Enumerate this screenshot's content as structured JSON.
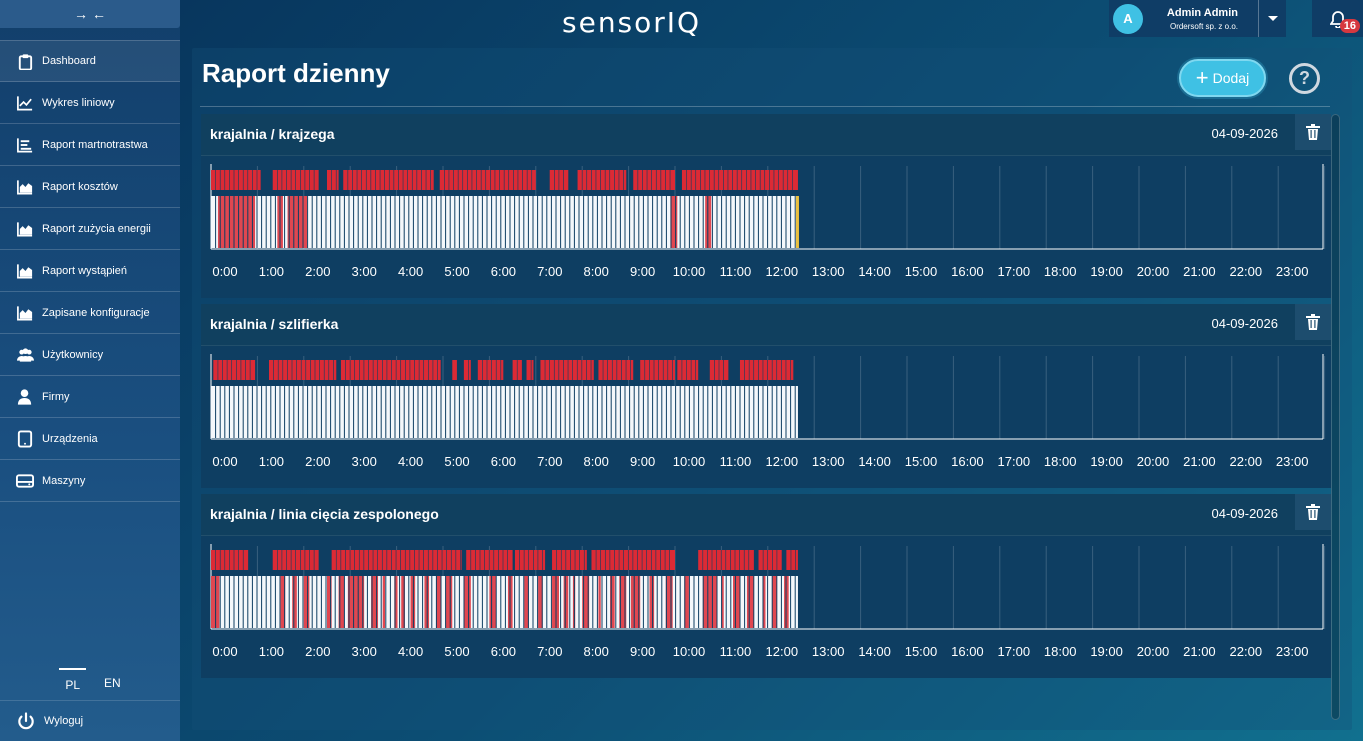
{
  "sidebar": {
    "items": [
      {
        "label": "Dashboard",
        "icon": "clipboard-icon"
      },
      {
        "label": "Wykres liniowy",
        "icon": "line-chart-icon"
      },
      {
        "label": "Raport martnotrastwa",
        "icon": "bar-list-icon"
      },
      {
        "label": "Raport kosztów",
        "icon": "area-chart-icon"
      },
      {
        "label": "Raport zużycia energii",
        "icon": "area-chart-icon"
      },
      {
        "label": "Raport wystąpień",
        "icon": "area-chart-icon"
      },
      {
        "label": "Zapisane konfiguracje",
        "icon": "area-chart-icon"
      },
      {
        "label": "Użytkownicy",
        "icon": "users-icon"
      },
      {
        "label": "Firmy",
        "icon": "user-icon"
      },
      {
        "label": "Urządzenia",
        "icon": "tablet-icon"
      },
      {
        "label": "Maszyny",
        "icon": "hdd-icon"
      }
    ],
    "languages": [
      "PL",
      "EN"
    ],
    "active_language": "PL",
    "logout": "Wyloguj"
  },
  "header": {
    "logo": "sensorIQ",
    "user_initial": "A",
    "user_name": "Admin Admin",
    "user_company": "Ordersoft sp. z o.o.",
    "notifications": "16"
  },
  "main": {
    "title": "Raport dzienny",
    "add_label": "Dodaj",
    "help_label": "?"
  },
  "hours": [
    "0:00",
    "1:00",
    "2:00",
    "3:00",
    "4:00",
    "5:00",
    "6:00",
    "7:00",
    "8:00",
    "9:00",
    "10:00",
    "11:00",
    "12:00",
    "13:00",
    "14:00",
    "15:00",
    "16:00",
    "17:00",
    "18:00",
    "19:00",
    "20:00",
    "21:00",
    "22:00",
    "23:00"
  ],
  "colors": {
    "running": "#dc2a35",
    "idle_bar": "#e04750",
    "ok_bar": "#f4f8fb",
    "stroke": "#0e3e62",
    "warning": "#e8c040"
  },
  "reports": [
    {
      "title": "krajalnia / krajzega",
      "date": "04-09-2026",
      "current_hour": 12.65,
      "top_segments": [
        [
          0.0,
          1.07
        ],
        [
          1.33,
          2.32
        ],
        [
          2.5,
          2.75
        ],
        [
          2.85,
          4.8
        ],
        [
          4.93,
          7.0
        ],
        [
          7.3,
          7.7
        ],
        [
          7.9,
          8.95
        ],
        [
          9.1,
          10.0
        ],
        [
          10.15,
          12.65
        ]
      ],
      "bottom_red": [
        [
          0.15,
          0.95
        ],
        [
          1.43,
          1.55
        ],
        [
          1.65,
          2.07
        ],
        [
          9.9,
          10.05
        ],
        [
          10.65,
          10.78
        ]
      ],
      "end_marker": true
    },
    {
      "title": "krajalnia / szlifierka",
      "date": "04-09-2026",
      "current_hour": 12.65,
      "top_segments": [
        [
          0.05,
          0.95
        ],
        [
          1.25,
          2.7
        ],
        [
          2.8,
          4.95
        ],
        [
          5.2,
          5.3
        ],
        [
          5.45,
          5.6
        ],
        [
          5.75,
          6.3
        ],
        [
          6.5,
          6.7
        ],
        [
          6.8,
          6.95
        ],
        [
          7.1,
          8.25
        ],
        [
          8.35,
          9.1
        ],
        [
          9.25,
          10.0
        ],
        [
          10.05,
          10.5
        ],
        [
          10.75,
          11.15
        ],
        [
          11.4,
          12.55
        ]
      ],
      "bottom_red": [],
      "end_marker": false
    },
    {
      "title": "krajalnia / linia cięcia zespolonego",
      "date": "04-09-2026",
      "current_hour": 12.65,
      "top_segments": [
        [
          0.0,
          0.8
        ],
        [
          1.33,
          2.32
        ],
        [
          2.6,
          5.4
        ],
        [
          5.5,
          6.5
        ],
        [
          6.55,
          7.2
        ],
        [
          7.35,
          8.1
        ],
        [
          8.2,
          10.0
        ],
        [
          10.5,
          11.7
        ],
        [
          11.8,
          12.3
        ],
        [
          12.4,
          12.65
        ]
      ],
      "bottom_red": [
        [
          0.0,
          0.18
        ],
        [
          1.5,
          1.6
        ],
        [
          1.75,
          1.85
        ],
        [
          2.0,
          2.12
        ],
        [
          2.5,
          2.6
        ],
        [
          2.75,
          2.87
        ],
        [
          2.95,
          3.3
        ],
        [
          3.45,
          3.6
        ],
        [
          3.7,
          3.75
        ],
        [
          3.95,
          4.02
        ],
        [
          4.1,
          4.18
        ],
        [
          4.3,
          4.4
        ],
        [
          4.6,
          4.7
        ],
        [
          4.85,
          4.95
        ],
        [
          5.05,
          5.2
        ],
        [
          5.45,
          5.6
        ],
        [
          6.0,
          6.15
        ],
        [
          6.4,
          6.5
        ],
        [
          6.75,
          6.85
        ],
        [
          7.05,
          7.15
        ],
        [
          7.35,
          7.5
        ],
        [
          7.6,
          7.7
        ],
        [
          7.8,
          7.85
        ],
        [
          8.0,
          8.15
        ],
        [
          8.35,
          8.4
        ],
        [
          8.6,
          8.7
        ],
        [
          8.8,
          8.95
        ],
        [
          9.05,
          9.25
        ],
        [
          9.45,
          9.55
        ],
        [
          9.8,
          9.95
        ],
        [
          10.2,
          10.3
        ],
        [
          10.6,
          10.9
        ],
        [
          11.0,
          11.05
        ],
        [
          11.25,
          11.4
        ],
        [
          11.55,
          11.7
        ],
        [
          11.9,
          11.95
        ],
        [
          12.1,
          12.2
        ],
        [
          12.35,
          12.45
        ]
      ],
      "end_marker": false
    }
  ]
}
